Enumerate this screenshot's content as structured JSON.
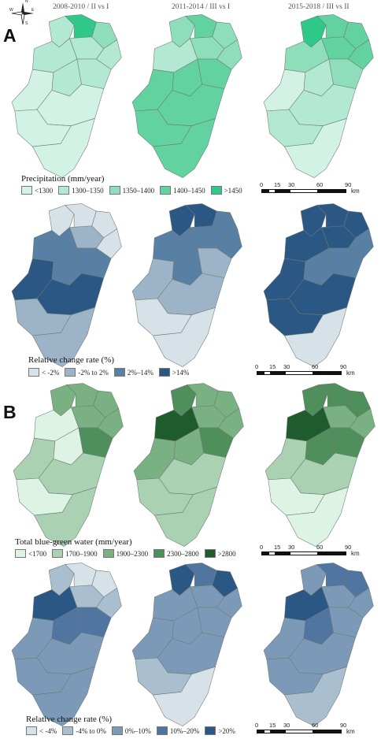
{
  "columns": [
    "2008-2010 / II vs I",
    "2011-2014 / III vs I",
    "2015-2018 / III vs II"
  ],
  "north_arrow": {
    "icon": "compass-rose-icon",
    "n": "N",
    "e": "E",
    "s": "S",
    "w": "W"
  },
  "panel_A": {
    "letter": "A",
    "precip_legend": {
      "title": "Precipitation (mm/year)",
      "items": [
        {
          "label": "<1300",
          "color": "#d3f2e6"
        },
        {
          "label": "1300–1350",
          "color": "#b3e8d2"
        },
        {
          "label": "1350–1400",
          "color": "#8fdebb"
        },
        {
          "label": "1400–1450",
          "color": "#61d2a0"
        },
        {
          "label": ">1450",
          "color": "#2ec988"
        }
      ]
    },
    "change_legend": {
      "title": "Relative change rate (%)",
      "items": [
        {
          "label": "< -2%",
          "color": "#d6e1e8"
        },
        {
          "label": "-2% to 2%",
          "color": "#9db4c8"
        },
        {
          "label": "2%–14%",
          "color": "#587fa4"
        },
        {
          "label": ">14%",
          "color": "#2a5784"
        }
      ]
    }
  },
  "panel_B": {
    "letter": "B",
    "water_legend": {
      "title": "Total blue-green water (mm/year)",
      "items": [
        {
          "label": "<1700",
          "color": "#ddf3e4"
        },
        {
          "label": "1700–1900",
          "color": "#aad2b2"
        },
        {
          "label": "1900–2300",
          "color": "#79b183"
        },
        {
          "label": "2300–2800",
          "color": "#4f8f5c"
        },
        {
          "label": ">2800",
          "color": "#1e5c2e"
        }
      ]
    },
    "change_legend": {
      "title": "Relative change rate (%)",
      "items": [
        {
          "label": "< -4%",
          "color": "#d6e1e8"
        },
        {
          "label": "-4% to 0%",
          "color": "#a9bfd0"
        },
        {
          "label": "0%–10%",
          "color": "#7c9ab8"
        },
        {
          "label": "10%–20%",
          "color": "#4f75a0"
        },
        {
          "label": ">20%",
          "color": "#2a5784"
        }
      ]
    }
  },
  "scale_bar": {
    "ticks": [
      "0",
      "15",
      "30",
      "60",
      "90"
    ],
    "unit": "km"
  },
  "maps": {
    "precip": [
      [
        1,
        4,
        2,
        1,
        1,
        1,
        1,
        1,
        0,
        0,
        0,
        0
      ],
      [
        2,
        3,
        2,
        2,
        2,
        1,
        3,
        3,
        3,
        3,
        3,
        3
      ],
      [
        4,
        3,
        3,
        3,
        3,
        2,
        2,
        1,
        0,
        1,
        1,
        0
      ]
    ],
    "precip_change": [
      [
        0,
        0,
        0,
        1,
        0,
        2,
        2,
        2,
        3,
        3,
        1,
        1
      ],
      [
        3,
        3,
        2,
        2,
        2,
        2,
        1,
        2,
        1,
        1,
        0,
        0
      ],
      [
        3,
        3,
        3,
        3,
        2,
        3,
        2,
        2,
        3,
        3,
        3,
        0
      ]
    ],
    "water": [
      [
        2,
        2,
        2,
        2,
        2,
        0,
        3,
        0,
        1,
        1,
        0,
        1
      ],
      [
        3,
        2,
        2,
        2,
        2,
        4,
        3,
        2,
        2,
        1,
        1,
        1
      ],
      [
        3,
        3,
        3,
        2,
        2,
        4,
        3,
        3,
        1,
        1,
        0,
        0
      ]
    ],
    "water_change": [
      [
        1,
        0,
        0,
        1,
        1,
        4,
        3,
        3,
        2,
        2,
        2,
        2
      ],
      [
        4,
        3,
        4,
        2,
        2,
        2,
        2,
        2,
        2,
        2,
        1,
        0
      ],
      [
        2,
        3,
        3,
        2,
        2,
        4,
        2,
        3,
        2,
        2,
        2,
        1
      ]
    ]
  }
}
